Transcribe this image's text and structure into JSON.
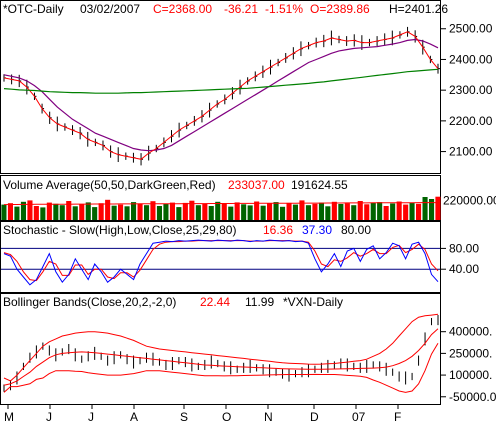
{
  "colors": {
    "price_bars": "#000000",
    "ma_fast": "#ff0000",
    "ma_mid": "#800080",
    "ma_slow": "#008000",
    "volume_up": "#006400",
    "volume_down": "#ff0000",
    "volume_avg_line": "#ff0000",
    "stoch_k": "#0000ff",
    "stoch_d": "#ff0000",
    "stoch_levels": "#000080",
    "bollinger_bands": "#ff0000",
    "legend_red_value": "#ff0000",
    "legend_blue_value": "#0000ff",
    "panel_border": "#000000"
  },
  "header": {
    "symbol": "*OTC-Daily",
    "date": "03/02/2007",
    "close": "C=2368.00",
    "change": "-36.21",
    "change_pct": "-1.51%",
    "open": "O=2389.86",
    "high": "H=2401.26"
  },
  "volume_legend": {
    "label": "Volume Average(50,50,DarkGreen,Red)",
    "value1": "233037.00",
    "value2": "191624.55"
  },
  "stoch_legend": {
    "label": "Stochastic - Slow(High,Low,Close,25,29,80)",
    "value1": "16.36",
    "value2": "37.30",
    "value3": "80.00"
  },
  "boll_legend": {
    "label": "Bollinger Bands(Close,20,2,-2,0)",
    "value1": "22.44",
    "value2": "11.99",
    "value3": "*VXN-Daily"
  },
  "chart_data": [
    {
      "type": "line",
      "panel": "price",
      "x_labels": [
        "M",
        "J",
        "J",
        "A",
        "S",
        "O",
        "N",
        "D",
        "07",
        "F"
      ],
      "y_ticks": [
        "2500.00",
        "2400.00",
        "2300.00",
        "2200.00",
        "2100.00"
      ],
      "ylim": [
        2040,
        2535
      ],
      "series": [
        {
          "values": [
            2340,
            2335,
            2330,
            2310,
            2280,
            2240,
            2210,
            2190,
            2180,
            2170,
            2160,
            2140,
            2130,
            2120,
            2100,
            2090,
            2085,
            2080,
            2075,
            2095,
            2110,
            2130,
            2150,
            2170,
            2185,
            2200,
            2215,
            2235,
            2255,
            2270,
            2290,
            2310,
            2330,
            2345,
            2360,
            2375,
            2390,
            2405,
            2420,
            2435,
            2445,
            2455,
            2460,
            2470,
            2465,
            2460,
            2462,
            2455,
            2455,
            2460,
            2465,
            2470,
            2480,
            2490,
            2475,
            2440,
            2400,
            2370
          ]
        },
        {
          "values": [
            2350,
            2345,
            2340,
            2330,
            2315,
            2295,
            2270,
            2245,
            2225,
            2205,
            2190,
            2175,
            2160,
            2150,
            2140,
            2130,
            2120,
            2110,
            2105,
            2103,
            2105,
            2110,
            2120,
            2135,
            2150,
            2165,
            2180,
            2195,
            2210,
            2225,
            2240,
            2255,
            2270,
            2285,
            2300,
            2315,
            2330,
            2345,
            2360,
            2375,
            2390,
            2400,
            2410,
            2420,
            2428,
            2432,
            2436,
            2438,
            2440,
            2442,
            2446,
            2450,
            2455,
            2462,
            2465,
            2460,
            2450,
            2438
          ]
        },
        {
          "values": [
            2305,
            2303,
            2301,
            2300,
            2299,
            2297,
            2295,
            2294,
            2293,
            2292,
            2292,
            2291,
            2290,
            2290,
            2290,
            2290,
            2291,
            2292,
            2292,
            2293,
            2294,
            2295,
            2296,
            2297,
            2298,
            2299,
            2300,
            2301,
            2302,
            2303,
            2304,
            2305,
            2306,
            2308,
            2310,
            2312,
            2314,
            2316,
            2318,
            2320,
            2322,
            2325,
            2327,
            2330,
            2333,
            2336,
            2339,
            2342,
            2345,
            2348,
            2351,
            2354,
            2357,
            2360,
            2362,
            2364,
            2366,
            2368
          ]
        }
      ]
    },
    {
      "type": "bar",
      "panel": "volume",
      "y_ticks": [
        "220000.00"
      ],
      "ylim": [
        150000,
        250000
      ],
      "up_down": [
        1,
        0,
        1,
        1,
        0,
        0,
        1,
        0,
        1,
        1,
        0,
        1,
        0,
        1,
        1,
        0,
        0,
        1,
        0,
        1,
        1,
        0,
        1,
        0,
        1,
        1,
        0,
        1,
        0,
        0,
        1,
        0,
        1,
        1,
        0,
        1,
        0,
        1,
        1,
        0,
        1,
        0,
        1,
        1,
        0,
        1,
        0,
        1,
        0,
        1,
        1,
        0,
        1,
        0,
        1,
        0,
        0,
        1,
        1,
        0,
        1,
        0,
        0,
        1,
        0,
        1,
        1,
        0
      ],
      "values": [
        205000,
        210000,
        198000,
        215000,
        220000,
        200000,
        195000,
        212000,
        208000,
        203000,
        218000,
        199000,
        207000,
        213000,
        196000,
        210000,
        222000,
        201000,
        205000,
        199000,
        214000,
        208000,
        203000,
        217000,
        200000,
        209000,
        212000,
        196000,
        211000,
        219000,
        203000,
        207000,
        200000,
        215000,
        210000,
        198000,
        213000,
        206000,
        202000,
        216000,
        201000,
        209000,
        214000,
        197000,
        211000,
        205000,
        220000,
        203000,
        208000,
        212000,
        199000,
        215000,
        207000,
        210000,
        203000,
        218000,
        206000,
        211000,
        214000,
        200000,
        209000,
        216000,
        205000,
        212000,
        208000,
        232000,
        225000,
        233037
      ],
      "series": [
        {
          "name": "avg",
          "values": [
            205000,
            205200,
            205400,
            205600,
            205800,
            206000,
            206200,
            206300,
            206400,
            206500,
            206600,
            206700,
            206800,
            206900,
            207000,
            207100,
            207200,
            207300,
            207400,
            207500,
            207600,
            207700,
            207800,
            207900,
            208000,
            208100,
            208200,
            208300,
            208400,
            208500,
            208600,
            208700,
            208800,
            208900,
            209000,
            209100,
            209200,
            209300,
            209400,
            209500,
            209600,
            209700,
            209800,
            209900,
            210000,
            210100,
            210200,
            210300,
            210400,
            210500,
            210600,
            210700,
            210800,
            210900,
            211000,
            211100,
            211200,
            211300,
            211400,
            211500,
            211600,
            211700,
            211800,
            211900,
            212000,
            212100,
            212200,
            212300
          ]
        }
      ]
    },
    {
      "type": "line",
      "panel": "stochastic",
      "y_ticks": [
        "80.00",
        "40.00"
      ],
      "ylim": [
        0,
        100
      ],
      "series": [
        {
          "values": [
            70,
            65,
            40,
            25,
            10,
            20,
            45,
            70,
            35,
            15,
            30,
            60,
            40,
            20,
            50,
            35,
            15,
            25,
            40,
            30,
            20,
            50,
            70,
            90,
            92,
            94,
            93,
            95,
            94,
            95,
            96,
            95,
            94,
            96,
            95,
            94,
            96,
            95,
            93,
            95,
            94,
            96,
            95,
            94,
            95,
            93,
            94,
            90,
            60,
            35,
            50,
            70,
            45,
            75,
            80,
            55,
            78,
            85,
            60,
            72,
            90,
            85,
            60,
            88,
            92,
            70,
            30,
            16
          ]
        },
        {
          "values": [
            72,
            68,
            55,
            35,
            20,
            18,
            35,
            55,
            50,
            28,
            28,
            48,
            48,
            30,
            40,
            40,
            25,
            22,
            33,
            33,
            25,
            38,
            58,
            78,
            88,
            92,
            93,
            93,
            94,
            94,
            95,
            95,
            95,
            95,
            95,
            95,
            95,
            95,
            94,
            94,
            94,
            95,
            95,
            95,
            95,
            94,
            94,
            92,
            75,
            50,
            45,
            58,
            55,
            62,
            72,
            65,
            70,
            78,
            70,
            70,
            82,
            86,
            72,
            78,
            88,
            78,
            50,
            37
          ]
        }
      ]
    },
    {
      "type": "line",
      "panel": "bollinger",
      "x_labels": [
        "M",
        "J",
        "J",
        "A",
        "S",
        "O",
        "N",
        "D",
        "07",
        "F"
      ],
      "y_ticks": [
        "400000.",
        "250000.",
        "100000.",
        "-50000.0"
      ],
      "ylim": [
        -100000,
        550000
      ],
      "series": [
        {
          "values": [
            80000,
            60000,
            100000,
            150000,
            200000,
            250000,
            300000,
            330000,
            350000,
            370000,
            380000,
            390000,
            395000,
            400000,
            400000,
            395000,
            390000,
            380000,
            370000,
            355000,
            340000,
            320000,
            300000,
            290000,
            280000,
            275000,
            270000,
            265000,
            260000,
            255000,
            250000,
            245000,
            240000,
            235000,
            230000,
            225000,
            220000,
            215000,
            210000,
            205000,
            200000,
            195000,
            190000,
            185000,
            182000,
            180000,
            178000,
            176000,
            175000,
            176000,
            178000,
            180000,
            185000,
            190000,
            195000,
            200000,
            210000,
            230000,
            250000,
            280000,
            320000,
            370000,
            420000,
            470000,
            500000,
            510000,
            515000,
            520000
          ]
        },
        {
          "values": [
            30000,
            40000,
            60000,
            90000,
            120000,
            160000,
            190000,
            220000,
            240000,
            250000,
            255000,
            258000,
            260000,
            258000,
            255000,
            250000,
            245000,
            240000,
            235000,
            230000,
            225000,
            220000,
            215000,
            210000,
            205000,
            200000,
            195000,
            190000,
            185000,
            180000,
            175000,
            170000,
            168000,
            165000,
            162000,
            160000,
            158000,
            156000,
            154000,
            152000,
            150000,
            148000,
            146000,
            144000,
            143000,
            142000,
            141000,
            140000,
            140000,
            140000,
            141000,
            142000,
            143000,
            144000,
            145000,
            146000,
            147000,
            148000,
            150000,
            155000,
            165000,
            180000,
            200000,
            230000,
            270000,
            320000,
            380000,
            420000
          ]
        },
        {
          "values": [
            -20000,
            20000,
            20000,
            30000,
            40000,
            70000,
            80000,
            110000,
            130000,
            130000,
            130000,
            126000,
            125000,
            116000,
            110000,
            105000,
            100000,
            100000,
            100000,
            105000,
            110000,
            120000,
            130000,
            130000,
            130000,
            125000,
            120000,
            115000,
            110000,
            105000,
            100000,
            95000,
            96000,
            95000,
            94000,
            95000,
            96000,
            97000,
            98000,
            99000,
            100000,
            101000,
            102000,
            103000,
            104000,
            104000,
            104000,
            104000,
            105000,
            104000,
            104000,
            104000,
            101000,
            98000,
            95000,
            92000,
            84000,
            66000,
            50000,
            30000,
            10000,
            -10000,
            -20000,
            -10000,
            40000,
            130000,
            245000,
            320000
          ]
        },
        {
          "values": [
            10000,
            30000,
            80000,
            160000,
            220000,
            260000,
            300000,
            270000,
            240000,
            260000,
            280000,
            240000,
            210000,
            230000,
            250000,
            230000,
            200000,
            220000,
            240000,
            210000,
            190000,
            200000,
            220000,
            210000,
            190000,
            170000,
            180000,
            200000,
            190000,
            170000,
            160000,
            170000,
            190000,
            180000,
            160000,
            150000,
            140000,
            150000,
            160000,
            150000,
            140000,
            130000,
            120000,
            110000,
            100000,
            110000,
            120000,
            130000,
            140000,
            150000,
            160000,
            170000,
            180000,
            170000,
            160000,
            150000,
            160000,
            170000,
            160000,
            140000,
            120000,
            90000,
            80000,
            90000,
            200000,
            350000,
            470000,
            480000
          ]
        }
      ]
    }
  ]
}
